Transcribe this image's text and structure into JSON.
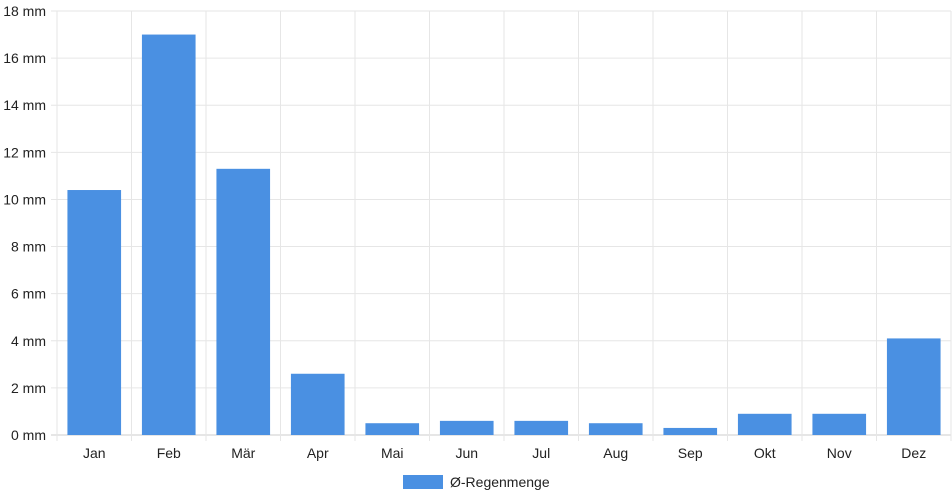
{
  "chart_data": {
    "type": "bar",
    "categories": [
      "Jan",
      "Feb",
      "Mär",
      "Apr",
      "Mai",
      "Jun",
      "Jul",
      "Aug",
      "Sep",
      "Okt",
      "Nov",
      "Dez"
    ],
    "series": [
      {
        "name": "Ø-Regenmenge",
        "values": [
          10.4,
          17.0,
          11.3,
          2.6,
          0.5,
          0.6,
          0.6,
          0.5,
          0.3,
          0.9,
          0.9,
          4.1
        ]
      }
    ],
    "ylim": [
      0,
      18
    ],
    "yticks": [
      "0 mm",
      "2 mm",
      "4 mm",
      "6 mm",
      "8 mm",
      "10 mm",
      "12 mm",
      "14 mm",
      "16 mm",
      "18 mm"
    ],
    "grid": true,
    "legend_position": "bottom",
    "bar_color": "#4a90e2",
    "grid_color": "#e6e6e6"
  }
}
